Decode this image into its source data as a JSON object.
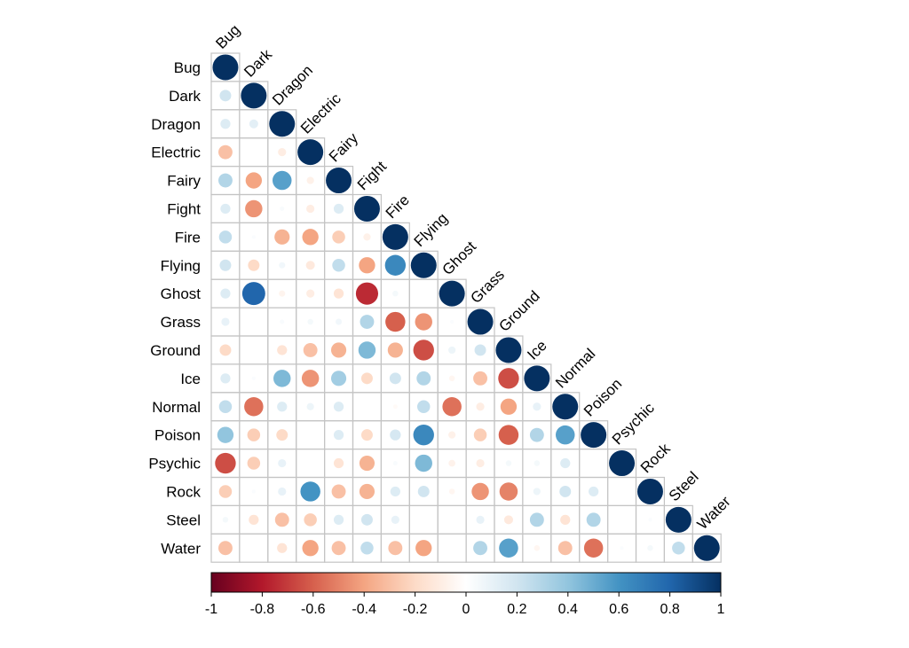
{
  "chart_data": {
    "type": "heatmap",
    "variables": [
      "Bug",
      "Dark",
      "Dragon",
      "Electric",
      "Fairy",
      "Fight",
      "Fire",
      "Flying",
      "Ghost",
      "Grass",
      "Ground",
      "Ice",
      "Normal",
      "Poison",
      "Psychic",
      "Rock",
      "Steel",
      "Water"
    ],
    "matrix_lower": [
      [
        1
      ],
      [
        0.2,
        1
      ],
      [
        0.15,
        0.12,
        1
      ],
      [
        -0.3,
        0.0,
        -0.1,
        1
      ],
      [
        0.3,
        -0.4,
        0.55,
        -0.08,
        1
      ],
      [
        0.15,
        -0.45,
        0.03,
        -0.1,
        0.15,
        1
      ],
      [
        0.25,
        0.02,
        -0.35,
        -0.4,
        -0.25,
        -0.08,
        1
      ],
      [
        0.2,
        -0.2,
        0.06,
        -0.12,
        0.25,
        -0.4,
        0.65,
        1
      ],
      [
        0.15,
        0.8,
        -0.06,
        -0.1,
        -0.15,
        -0.75,
        0.05,
        0.0,
        1
      ],
      [
        0.1,
        0.0,
        0.03,
        0.05,
        0.06,
        0.3,
        -0.6,
        -0.45,
        0.02,
        1
      ],
      [
        -0.2,
        0.0,
        -0.15,
        -0.3,
        -0.35,
        0.45,
        -0.35,
        -0.65,
        0.08,
        0.2,
        1
      ],
      [
        0.15,
        0.02,
        0.45,
        -0.45,
        0.35,
        -0.2,
        0.2,
        0.3,
        -0.05,
        -0.3,
        -0.65,
        1
      ],
      [
        0.25,
        -0.55,
        0.15,
        0.08,
        0.15,
        0.0,
        -0.03,
        0.25,
        -0.55,
        -0.1,
        -0.4,
        0.1,
        1
      ],
      [
        0.4,
        -0.25,
        -0.2,
        0.0,
        0.15,
        -0.2,
        0.18,
        0.65,
        -0.08,
        -0.25,
        -0.6,
        0.3,
        0.55,
        1
      ],
      [
        -0.65,
        -0.25,
        0.1,
        0.0,
        -0.15,
        -0.35,
        0.03,
        0.45,
        -0.07,
        -0.1,
        0.05,
        0.05,
        0.15,
        0.0,
        1
      ],
      [
        -0.25,
        0.02,
        0.1,
        0.6,
        -0.3,
        -0.35,
        0.15,
        0.2,
        -0.05,
        -0.45,
        -0.5,
        0.08,
        0.2,
        0.15,
        0.0,
        1
      ],
      [
        0.05,
        -0.15,
        -0.3,
        -0.25,
        0.15,
        0.2,
        0.1,
        0.0,
        0.0,
        0.1,
        -0.12,
        0.3,
        -0.15,
        0.3,
        0.0,
        0.02,
        1
      ],
      [
        -0.3,
        0.0,
        -0.15,
        -0.4,
        -0.3,
        0.25,
        -0.3,
        -0.4,
        0.0,
        0.3,
        0.55,
        -0.05,
        -0.3,
        -0.55,
        0.02,
        0.05,
        0.25,
        1
      ]
    ],
    "colorbar": {
      "ticks": [
        "-1",
        "-0.8",
        "-0.6",
        "-0.4",
        "-0.2",
        "0",
        "0.2",
        "0.4",
        "0.6",
        "0.8",
        "1"
      ],
      "range": [
        -1,
        1
      ],
      "colors": [
        "#67001f",
        "#b2182b",
        "#d6604d",
        "#f4a582",
        "#fddbc7",
        "#ffffff",
        "#d1e5f0",
        "#92c5de",
        "#4393c3",
        "#2166ac",
        "#053061"
      ]
    }
  }
}
